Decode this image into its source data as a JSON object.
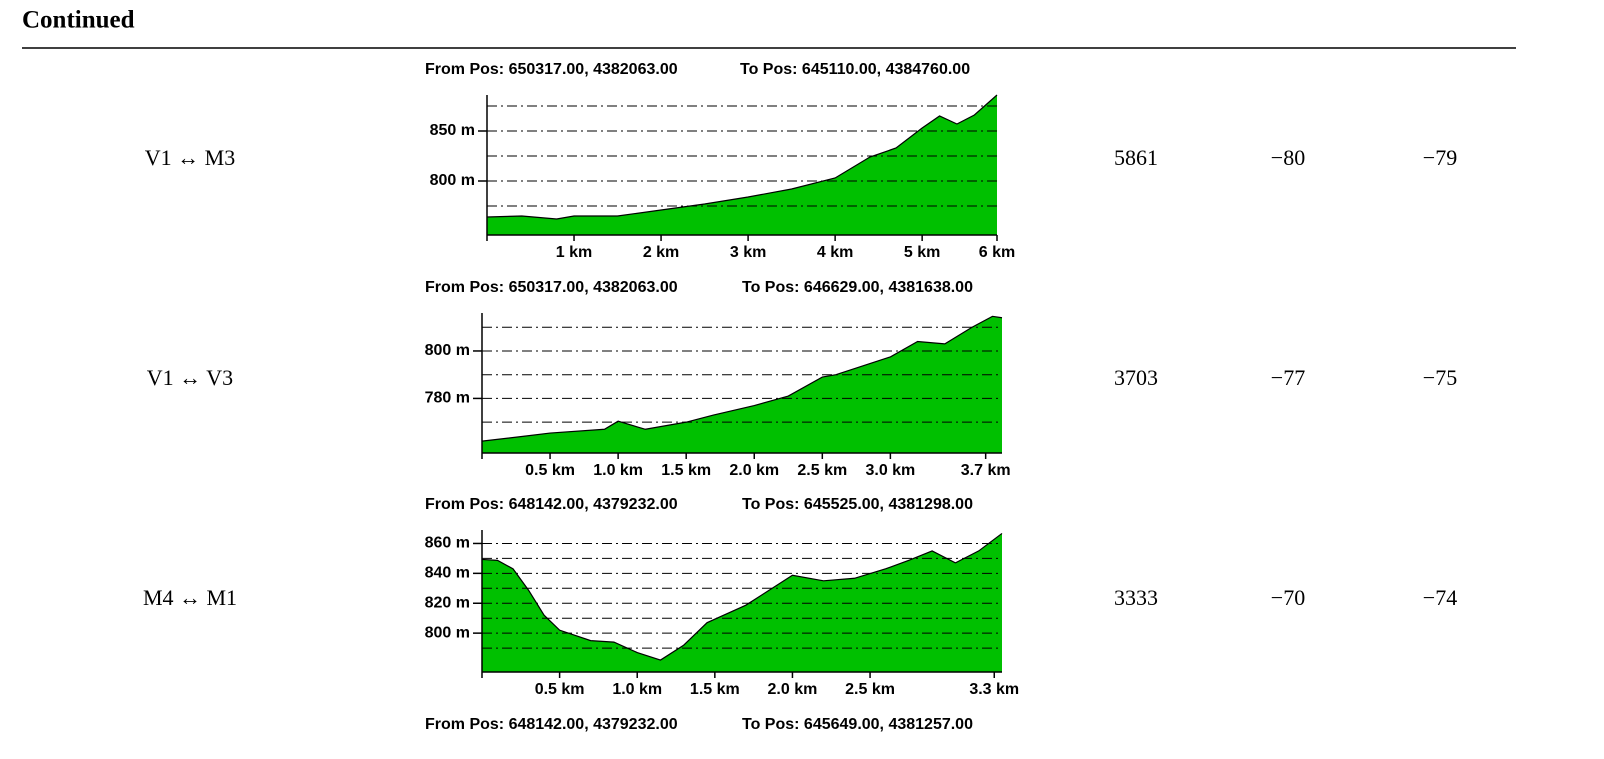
{
  "header": {
    "title": "Continued"
  },
  "table": {
    "rows": [
      {
        "link": "V1 ↔ M3",
        "c1": "5861",
        "c2": "−80",
        "c3": "−79",
        "profile": {
          "type": "area",
          "from": "From Pos: 650317.00, 4382063.00",
          "to": "To Pos: 645110.00, 4384760.00",
          "color": "#00c000",
          "x": [
            0,
            0.4,
            0.8,
            1.0,
            1.5,
            2.0,
            2.5,
            3.0,
            3.5,
            4.0,
            4.4,
            4.7,
            5.0,
            5.2,
            5.4,
            5.6,
            5.86
          ],
          "values": [
            764,
            765,
            762,
            765,
            765,
            771,
            777,
            784,
            792,
            803,
            824,
            833,
            853,
            865,
            857,
            866,
            886
          ],
          "xlim": [
            0,
            5.86
          ],
          "ylim": [
            746,
            886
          ],
          "xticks": [
            {
              "value": 1,
              "label": "1 km"
            },
            {
              "value": 2,
              "label": "2 km"
            },
            {
              "value": 3,
              "label": "3 km"
            },
            {
              "value": 4,
              "label": "4 km"
            },
            {
              "value": 5,
              "label": "5 km"
            },
            {
              "value": 5.86,
              "label": "6 km"
            }
          ],
          "yticks": [
            {
              "value": 850,
              "label": "850 m"
            },
            {
              "value": 800,
              "label": "800 m"
            }
          ],
          "ygrid": [
            875,
            850,
            825,
            800,
            775
          ]
        }
      },
      {
        "link": "V1 ↔ V3",
        "c1": "3703",
        "c2": "−77",
        "c3": "−75",
        "profile": {
          "type": "area",
          "from": "From Pos: 650317.00, 4382063.00",
          "to": "To Pos: 646629.00, 4381638.00",
          "color": "#00c000",
          "x": [
            0,
            0.3,
            0.5,
            0.9,
            1.0,
            1.2,
            1.5,
            1.7,
            2.0,
            2.25,
            2.5,
            2.6,
            3.0,
            3.2,
            3.4,
            3.6,
            3.75,
            3.82
          ],
          "values": [
            762,
            764,
            765.4,
            767,
            770.4,
            767,
            770,
            773,
            777,
            781,
            789,
            790,
            797.5,
            804,
            803,
            810,
            814.6,
            814
          ],
          "xlim": [
            0,
            3.82
          ],
          "ylim": [
            757,
            816
          ],
          "xticks": [
            {
              "value": 0.5,
              "label": "0.5 km"
            },
            {
              "value": 1.0,
              "label": "1.0 km"
            },
            {
              "value": 1.5,
              "label": "1.5 km"
            },
            {
              "value": 2.0,
              "label": "2.0 km"
            },
            {
              "value": 2.5,
              "label": "2.5 km"
            },
            {
              "value": 3.0,
              "label": "3.0 km"
            },
            {
              "value": 3.7,
              "label": "3.7 km"
            }
          ],
          "yticks": [
            {
              "value": 800,
              "label": "800 m"
            },
            {
              "value": 780,
              "label": "780 m"
            }
          ],
          "ygrid": [
            810,
            800,
            790,
            780,
            770
          ]
        }
      },
      {
        "link": "M4 ↔ M1",
        "c1": "3333",
        "c2": "−70",
        "c3": "−74",
        "profile": {
          "type": "area",
          "from": "From Pos: 648142.00, 4379232.00",
          "to": "To Pos: 645525.00, 4381298.00",
          "color": "#00c000",
          "x": [
            0,
            0.1,
            0.2,
            0.3,
            0.4,
            0.5,
            0.7,
            0.85,
            1.0,
            1.15,
            1.3,
            1.45,
            1.7,
            2.0,
            2.2,
            2.4,
            2.6,
            2.75,
            2.9,
            3.05,
            3.2,
            3.35
          ],
          "values": [
            849.3,
            848.7,
            843,
            828.7,
            812,
            802,
            795,
            794,
            787,
            782,
            792,
            807,
            818.7,
            838.7,
            835,
            836.7,
            843,
            848.7,
            855,
            847,
            855,
            866.7
          ],
          "xlim": [
            0,
            3.35
          ],
          "ylim": [
            774,
            869
          ],
          "xticks": [
            {
              "value": 0.5,
              "label": "0.5 km"
            },
            {
              "value": 1.0,
              "label": "1.0 km"
            },
            {
              "value": 1.5,
              "label": "1.5 km"
            },
            {
              "value": 2.0,
              "label": "2.0 km"
            },
            {
              "value": 2.5,
              "label": "2.5 km"
            },
            {
              "value": 3.3,
              "label": "3.3 km"
            }
          ],
          "yticks": [
            {
              "value": 860,
              "label": "860 m"
            },
            {
              "value": 840,
              "label": "840 m"
            },
            {
              "value": 820,
              "label": "820 m"
            },
            {
              "value": 800,
              "label": "800 m"
            }
          ],
          "ygrid": [
            860,
            850,
            840,
            830,
            820,
            810,
            800,
            790
          ]
        }
      }
    ],
    "next": {
      "from": "From Pos: 648142.00, 4379232.00",
      "to": "To Pos: 645649.00, 4381257.00"
    }
  }
}
